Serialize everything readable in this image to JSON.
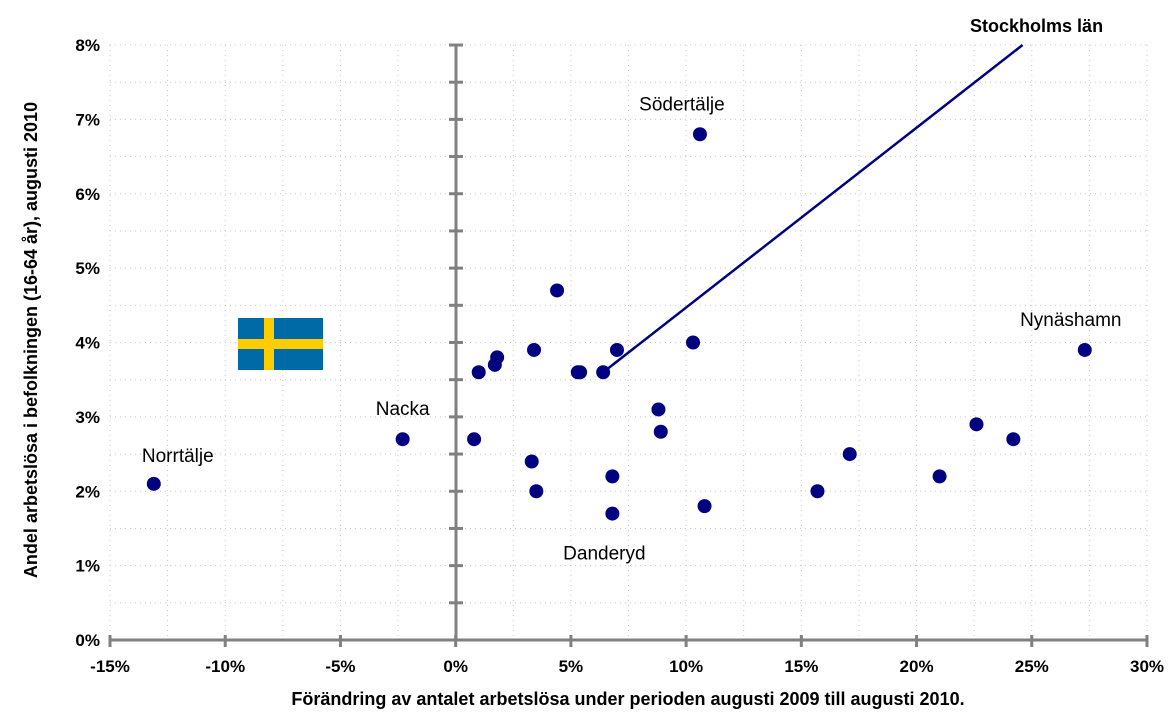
{
  "chart_data": {
    "type": "scatter",
    "title": "",
    "xlabel": "Förändring av antalet arbetslösa under perioden augusti 2009 till augusti 2010.",
    "ylabel": "Andel arbetslösa i befolkningen (16-64 år), augusti 2010",
    "xlim": [
      -15,
      30
    ],
    "ylim": [
      0,
      8
    ],
    "x_ticks": [
      "-15%",
      "-10%",
      "-5%",
      "0%",
      "5%",
      "10%",
      "15%",
      "20%",
      "25%",
      "30%"
    ],
    "x_tick_values": [
      -15,
      -10,
      -5,
      0,
      5,
      10,
      15,
      20,
      25,
      30
    ],
    "y_ticks": [
      "0%",
      "1%",
      "2%",
      "3%",
      "4%",
      "5%",
      "6%",
      "7%",
      "8%"
    ],
    "y_tick_values": [
      0,
      1,
      2,
      3,
      4,
      5,
      6,
      7,
      8
    ],
    "negative_tick_color": "#ff0000",
    "point_color": "#000080",
    "grid": true,
    "points": [
      {
        "x": -13.1,
        "y": 2.1,
        "label": "Norrtälje"
      },
      {
        "x": -2.3,
        "y": 2.7,
        "label": "Nacka"
      },
      {
        "x": 0.8,
        "y": 2.7
      },
      {
        "x": 1.0,
        "y": 3.6
      },
      {
        "x": 1.7,
        "y": 3.7
      },
      {
        "x": 1.8,
        "y": 3.8
      },
      {
        "x": 3.3,
        "y": 2.4
      },
      {
        "x": 3.4,
        "y": 3.9
      },
      {
        "x": 3.5,
        "y": 2.0
      },
      {
        "x": 4.4,
        "y": 4.7
      },
      {
        "x": 5.3,
        "y": 3.6
      },
      {
        "x": 5.4,
        "y": 3.6
      },
      {
        "x": 6.4,
        "y": 3.6
      },
      {
        "x": 6.8,
        "y": 2.2
      },
      {
        "x": 6.8,
        "y": 1.7,
        "label": "Danderyd"
      },
      {
        "x": 7.0,
        "y": 3.9
      },
      {
        "x": 8.8,
        "y": 3.1
      },
      {
        "x": 8.9,
        "y": 2.8
      },
      {
        "x": 10.3,
        "y": 4.0
      },
      {
        "x": 10.6,
        "y": 6.8,
        "label": "Södertälje"
      },
      {
        "x": 10.8,
        "y": 1.8
      },
      {
        "x": 15.7,
        "y": 2.0
      },
      {
        "x": 17.1,
        "y": 2.5
      },
      {
        "x": 21.0,
        "y": 2.2
      },
      {
        "x": 22.6,
        "y": 2.9
      },
      {
        "x": 24.2,
        "y": 2.7
      },
      {
        "x": 27.3,
        "y": 3.9,
        "label": "Nynäshamn"
      }
    ],
    "reference_line": {
      "label": "Stockholms län",
      "from": {
        "x": 6.4,
        "y": 3.6
      },
      "to": {
        "x": 24.6,
        "y": 8.0
      },
      "color": "#000080"
    },
    "flag": {
      "icon": "sweden-flag-icon",
      "blue": "#006aa7",
      "yellow": "#fecc00"
    }
  }
}
